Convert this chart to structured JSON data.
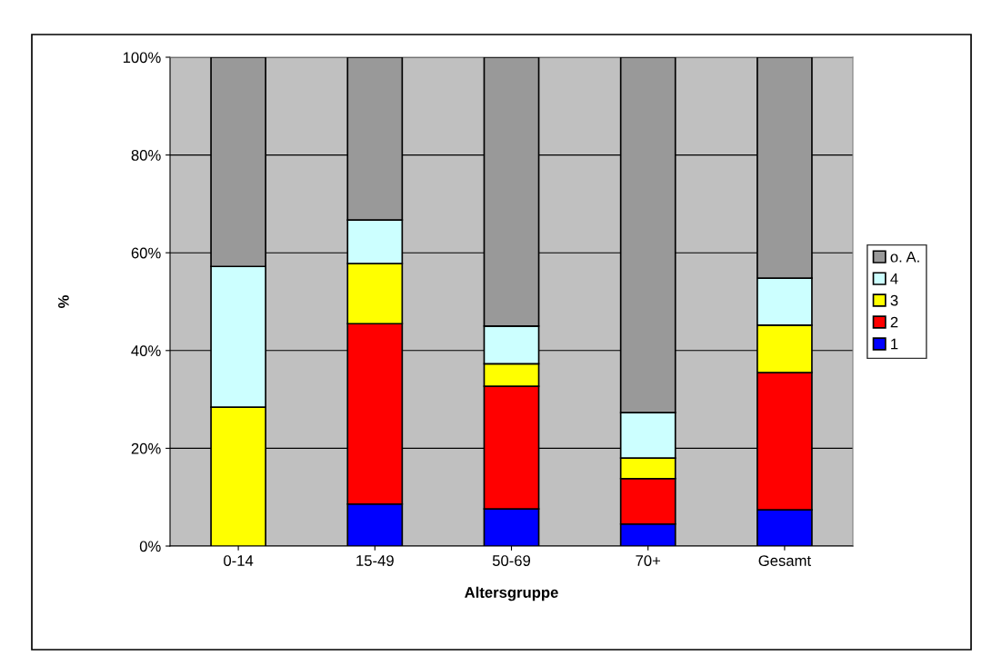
{
  "chart_data": {
    "type": "bar",
    "stacked": true,
    "xlabel": "Altersgruppe",
    "ylabel": "%",
    "categories": [
      "0-14",
      "15-49",
      "50-69",
      "70+",
      "Gesamt"
    ],
    "series": [
      {
        "name": "1",
        "color": "#0000ff",
        "values": [
          0,
          8.6,
          7.6,
          4.5,
          7.4
        ]
      },
      {
        "name": "2",
        "color": "#ff0000",
        "values": [
          0,
          36.9,
          25.1,
          9.3,
          28.1
        ]
      },
      {
        "name": "3",
        "color": "#ffff00",
        "values": [
          28.4,
          12.3,
          4.6,
          4.2,
          9.7
        ]
      },
      {
        "name": "4",
        "color": "#ccffff",
        "values": [
          28.8,
          8.9,
          7.7,
          9.3,
          9.6
        ]
      },
      {
        "name": "o. A.",
        "color": "#999999",
        "values": [
          42.8,
          33.3,
          55.0,
          72.7,
          45.2
        ]
      }
    ],
    "ylim": [
      0,
      100
    ],
    "yticks": [
      {
        "value": 0,
        "label": "0%"
      },
      {
        "value": 20,
        "label": "20%"
      },
      {
        "value": 40,
        "label": "40%"
      },
      {
        "value": 60,
        "label": "60%"
      },
      {
        "value": 80,
        "label": "80%"
      },
      {
        "value": 100,
        "label": "100%"
      }
    ],
    "grid": "y",
    "legend": "right"
  }
}
